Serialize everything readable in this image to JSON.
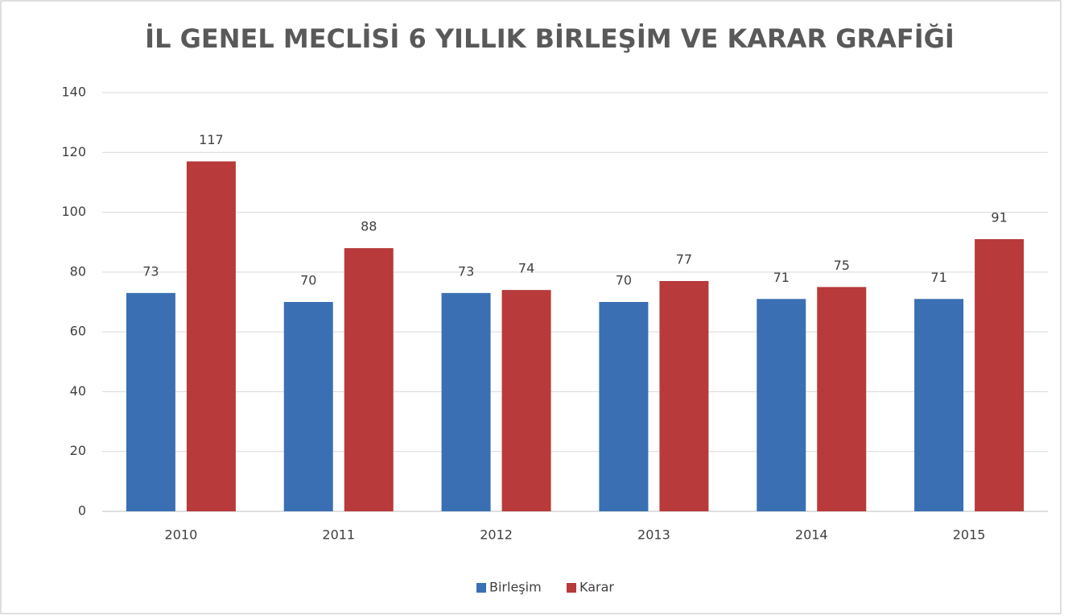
{
  "chart_data": {
    "type": "bar",
    "title": "İL GENEL MECLİSİ 6 YILLIK  BİRLEŞİM VE KARAR GRAFİĞİ",
    "categories": [
      "2010",
      "2011",
      "2012",
      "2013",
      "2014",
      "2015"
    ],
    "series": [
      {
        "name": "Birleşim",
        "color": "#3a70b3",
        "values": [
          73,
          70,
          73,
          70,
          71,
          71
        ]
      },
      {
        "name": "Karar",
        "color": "#b83a3a",
        "values": [
          117,
          88,
          74,
          77,
          75,
          91
        ]
      }
    ],
    "ylim": [
      0,
      140
    ],
    "yticks": [
      0,
      20,
      40,
      60,
      80,
      100,
      120,
      140
    ],
    "grid": true,
    "legend": "bottom"
  }
}
